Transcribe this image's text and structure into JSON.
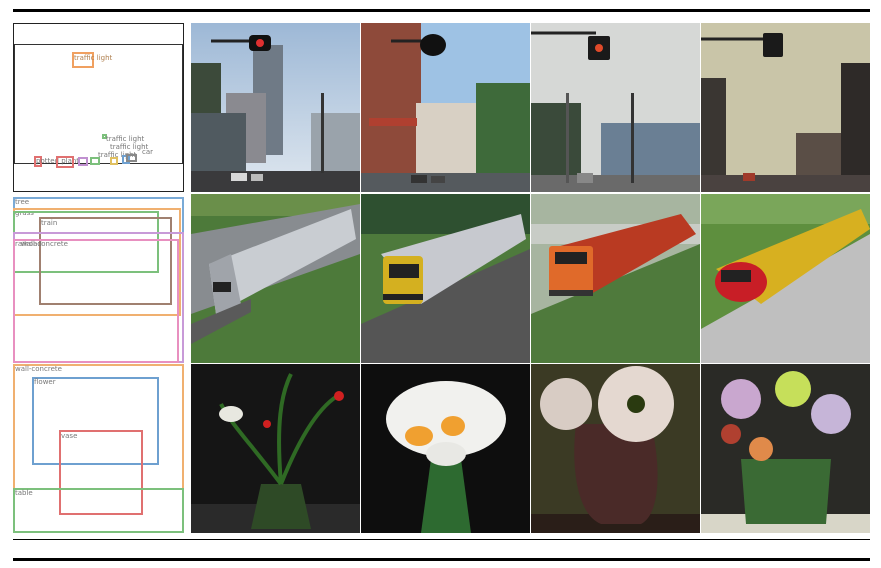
{
  "rows": [
    {
      "layout": {
        "labels": [
          {
            "text": "traffic light"
          },
          {
            "text": "traffic light"
          },
          {
            "text": "traffic light"
          },
          {
            "text": "traffic light"
          },
          {
            "text": "potted plant"
          },
          {
            "text": "car"
          }
        ],
        "colors": {
          "orange": "#f0a060",
          "green": "#7cc07c",
          "red": "#e07070",
          "blue": "#6ea0d0",
          "purple": "#c090d0"
        }
      },
      "images": [
        {
          "subject": "street-scene-traffic-light"
        },
        {
          "subject": "street-scene-traffic-light"
        },
        {
          "subject": "street-scene-traffic-light"
        },
        {
          "subject": "street-scene-traffic-light"
        }
      ]
    },
    {
      "layout": {
        "labels": [
          {
            "text": "tree"
          },
          {
            "text": "grass"
          },
          {
            "text": "train"
          },
          {
            "text": "railroad"
          },
          {
            "text": "wall-concrete"
          }
        ],
        "colors": {
          "blue": "#7aaad6",
          "orange": "#f0b070",
          "green": "#7cc07c",
          "brown": "#a08070",
          "purple": "#c89ad8",
          "pink": "#e890c0"
        }
      },
      "images": [
        {
          "subject": "train-on-grass"
        },
        {
          "subject": "train-on-grass"
        },
        {
          "subject": "train-on-grass"
        },
        {
          "subject": "train-on-grass"
        }
      ]
    },
    {
      "layout": {
        "labels": [
          {
            "text": "wall-concrete"
          },
          {
            "text": "flower"
          },
          {
            "text": "vase"
          },
          {
            "text": "table"
          }
        ],
        "colors": {
          "orange": "#f0b070",
          "blue": "#6ea0d0",
          "red": "#e07070",
          "green": "#7cc07c"
        }
      },
      "images": [
        {
          "subject": "flowers-in-vase"
        },
        {
          "subject": "flowers-in-vase"
        },
        {
          "subject": "flowers-in-vase"
        },
        {
          "subject": "flowers-in-vase"
        }
      ]
    }
  ]
}
